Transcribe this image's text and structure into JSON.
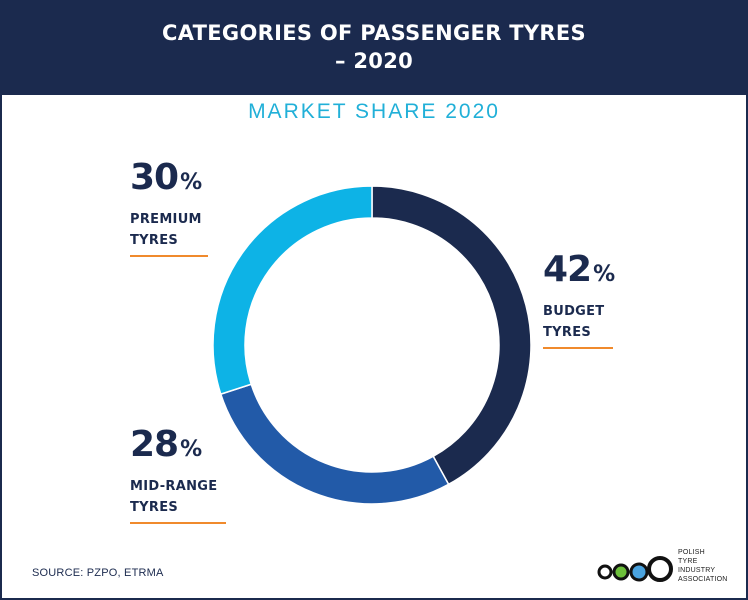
{
  "header": {
    "title_line1": "CATEGORIES OF PASSENGER TYRES",
    "title_line2": "– 2020"
  },
  "subtitle": "MARKET SHARE 2020",
  "source": "SOURCE: PZPO, ETRMA",
  "logo": {
    "lines": [
      "POLISH",
      "TYRE",
      "INDUSTRY",
      "ASSOCIATION"
    ]
  },
  "colors": {
    "budget": "#1b2a4e",
    "mid_range": "#225aa8",
    "premium": "#0db3e6",
    "accent_rule": "#f08a2c",
    "header_bg": "#1b2a4e",
    "subtitle": "#21b0d8"
  },
  "labels": {
    "premium": {
      "value": "30",
      "unit": "%",
      "line1": "PREMIUM",
      "line2": "TYRES"
    },
    "budget": {
      "value": "42",
      "unit": "%",
      "line1": "BUDGET",
      "line2": "TYRES"
    },
    "mid_range": {
      "value": "28",
      "unit": "%",
      "line1": "MID-RANGE",
      "line2": "TYRES"
    }
  },
  "chart_data": {
    "type": "pie",
    "title": "MARKET SHARE 2020",
    "categories": [
      "BUDGET TYRES",
      "MID-RANGE TYRES",
      "PREMIUM TYRES"
    ],
    "values": [
      42,
      28,
      30
    ],
    "unit": "%",
    "colors": [
      "#1b2a4e",
      "#225aa8",
      "#0db3e6"
    ],
    "donut": true
  }
}
